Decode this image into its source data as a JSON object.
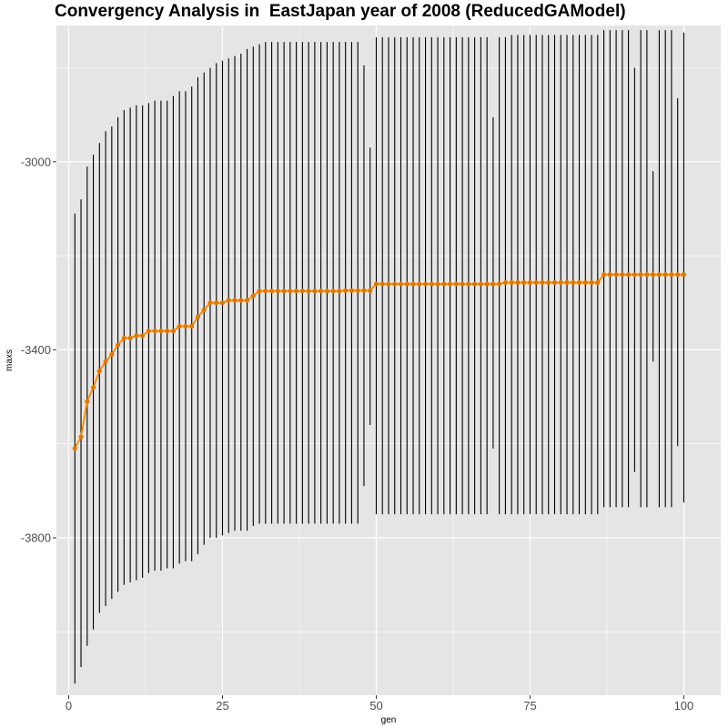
{
  "chart_data": {
    "type": "line",
    "title": "Convergency Analysis in  EastJapan year of 2008 (ReducedGAModel)",
    "xlabel": "gen",
    "ylabel": "maxs",
    "xlim": [
      -2,
      106
    ],
    "ylim": [
      -4135,
      -2710
    ],
    "x_ticks": [
      0,
      25,
      50,
      75,
      100
    ],
    "x_tick_labels": [
      "0",
      "25",
      "50",
      "75",
      "100"
    ],
    "y_ticks": [
      -3000,
      -3400,
      -3800
    ],
    "y_tick_labels": [
      "-3000",
      "-3400",
      "-3800"
    ],
    "grid": true,
    "legend": "none",
    "colors": {
      "panel": "#e5e5e5",
      "grid": "#ffffff",
      "line": "#ff8c00",
      "point": "#e07800",
      "range_bar": "#000000",
      "axis_text": "#4d4d4d"
    },
    "series": [
      {
        "kind": "range",
        "x": [
          1,
          2,
          3,
          4,
          5,
          6,
          7,
          8,
          9,
          10,
          11,
          12,
          13,
          14,
          15,
          16,
          17,
          18,
          19,
          20,
          21,
          22,
          23,
          24,
          25,
          26,
          27,
          28,
          29,
          30,
          31,
          32,
          33,
          34,
          35,
          36,
          37,
          38,
          39,
          40,
          41,
          42,
          43,
          44,
          45,
          46,
          47,
          48,
          49,
          50,
          51,
          52,
          53,
          54,
          55,
          56,
          57,
          58,
          59,
          60,
          61,
          62,
          63,
          64,
          65,
          66,
          67,
          68,
          69,
          70,
          71,
          72,
          73,
          74,
          75,
          76,
          77,
          78,
          79,
          80,
          81,
          82,
          83,
          84,
          85,
          86,
          87,
          88,
          89,
          90,
          91,
          92,
          93,
          94,
          95,
          96,
          97,
          98,
          99,
          100
        ],
        "min": [
          -4110,
          -4075,
          -4030,
          -3995,
          -3960,
          -3945,
          -3930,
          -3915,
          -3900,
          -3895,
          -3890,
          -3885,
          -3875,
          -3870,
          -3870,
          -3865,
          -3865,
          -3855,
          -3850,
          -3850,
          -3835,
          -3815,
          -3800,
          -3800,
          -3795,
          -3790,
          -3785,
          -3785,
          -3785,
          -3775,
          -3770,
          -3770,
          -3770,
          -3770,
          -3770,
          -3770,
          -3770,
          -3770,
          -3770,
          -3770,
          -3770,
          -3770,
          -3770,
          -3770,
          -3770,
          -3770,
          -3770,
          -3690,
          -3560,
          -3750,
          -3750,
          -3750,
          -3750,
          -3750,
          -3750,
          -3750,
          -3750,
          -3750,
          -3750,
          -3750,
          -3750,
          -3750,
          -3750,
          -3750,
          -3750,
          -3750,
          -3750,
          -3750,
          -3610,
          -3750,
          -3750,
          -3750,
          -3750,
          -3750,
          -3750,
          -3750,
          -3750,
          -3750,
          -3750,
          -3750,
          -3750,
          -3750,
          -3750,
          -3750,
          -3750,
          -3750,
          -3735,
          -3735,
          -3735,
          -3735,
          -3735,
          -3660,
          -3735,
          -3735,
          -3425,
          -3735,
          -3735,
          -3735,
          -3605,
          -3725
        ],
        "max": [
          -3110,
          -3080,
          -3010,
          -2985,
          -2960,
          -2935,
          -2925,
          -2905,
          -2890,
          -2885,
          -2880,
          -2880,
          -2875,
          -2870,
          -2870,
          -2870,
          -2860,
          -2850,
          -2850,
          -2840,
          -2820,
          -2810,
          -2800,
          -2790,
          -2785,
          -2780,
          -2775,
          -2770,
          -2760,
          -2755,
          -2750,
          -2745,
          -2745,
          -2745,
          -2745,
          -2745,
          -2745,
          -2745,
          -2745,
          -2745,
          -2745,
          -2745,
          -2745,
          -2745,
          -2745,
          -2745,
          -2745,
          -2795,
          -2970,
          -2735,
          -2735,
          -2735,
          -2735,
          -2735,
          -2735,
          -2735,
          -2735,
          -2735,
          -2735,
          -2735,
          -2735,
          -2735,
          -2735,
          -2735,
          -2735,
          -2735,
          -2735,
          -2735,
          -2905,
          -2735,
          -2735,
          -2730,
          -2730,
          -2730,
          -2730,
          -2730,
          -2730,
          -2730,
          -2730,
          -2730,
          -2730,
          -2730,
          -2730,
          -2730,
          -2730,
          -2730,
          -2720,
          -2720,
          -2720,
          -2720,
          -2720,
          -2800,
          -2720,
          -2720,
          -3020,
          -2720,
          -2720,
          -2720,
          -2865,
          -2725
        ]
      },
      {
        "kind": "line-points",
        "x": [
          1,
          2,
          3,
          4,
          5,
          6,
          7,
          8,
          9,
          10,
          11,
          12,
          13,
          14,
          15,
          16,
          17,
          18,
          19,
          20,
          21,
          22,
          23,
          24,
          25,
          26,
          27,
          28,
          29,
          30,
          31,
          32,
          33,
          34,
          35,
          36,
          37,
          38,
          39,
          40,
          41,
          42,
          43,
          44,
          45,
          46,
          47,
          48,
          49,
          50,
          51,
          52,
          53,
          54,
          55,
          56,
          57,
          58,
          59,
          60,
          61,
          62,
          63,
          64,
          65,
          66,
          67,
          68,
          69,
          70,
          71,
          72,
          73,
          74,
          75,
          76,
          77,
          78,
          79,
          80,
          81,
          82,
          83,
          84,
          85,
          86,
          87,
          88,
          89,
          90,
          91,
          92,
          93,
          94,
          95,
          96,
          97,
          98,
          99,
          100
        ],
        "y": [
          -3610,
          -3585,
          -3510,
          -3480,
          -3445,
          -3425,
          -3410,
          -3390,
          -3375,
          -3375,
          -3370,
          -3370,
          -3360,
          -3360,
          -3360,
          -3360,
          -3360,
          -3350,
          -3350,
          -3350,
          -3330,
          -3315,
          -3300,
          -3300,
          -3300,
          -3295,
          -3295,
          -3295,
          -3295,
          -3285,
          -3275,
          -3275,
          -3275,
          -3275,
          -3275,
          -3275,
          -3275,
          -3275,
          -3275,
          -3275,
          -3275,
          -3275,
          -3275,
          -3275,
          -3274,
          -3274,
          -3274,
          -3274,
          -3274,
          -3260,
          -3260,
          -3260,
          -3260,
          -3260,
          -3260,
          -3260,
          -3260,
          -3260,
          -3260,
          -3260,
          -3260,
          -3260,
          -3260,
          -3260,
          -3260,
          -3260,
          -3260,
          -3260,
          -3260,
          -3260,
          -3257,
          -3257,
          -3257,
          -3257,
          -3257,
          -3257,
          -3257,
          -3257,
          -3257,
          -3257,
          -3257,
          -3257,
          -3257,
          -3257,
          -3257,
          -3257,
          -3240,
          -3240,
          -3240,
          -3240,
          -3240,
          -3240,
          -3240,
          -3240,
          -3240,
          -3240,
          -3240,
          -3240,
          -3240,
          -3240
        ]
      }
    ]
  }
}
